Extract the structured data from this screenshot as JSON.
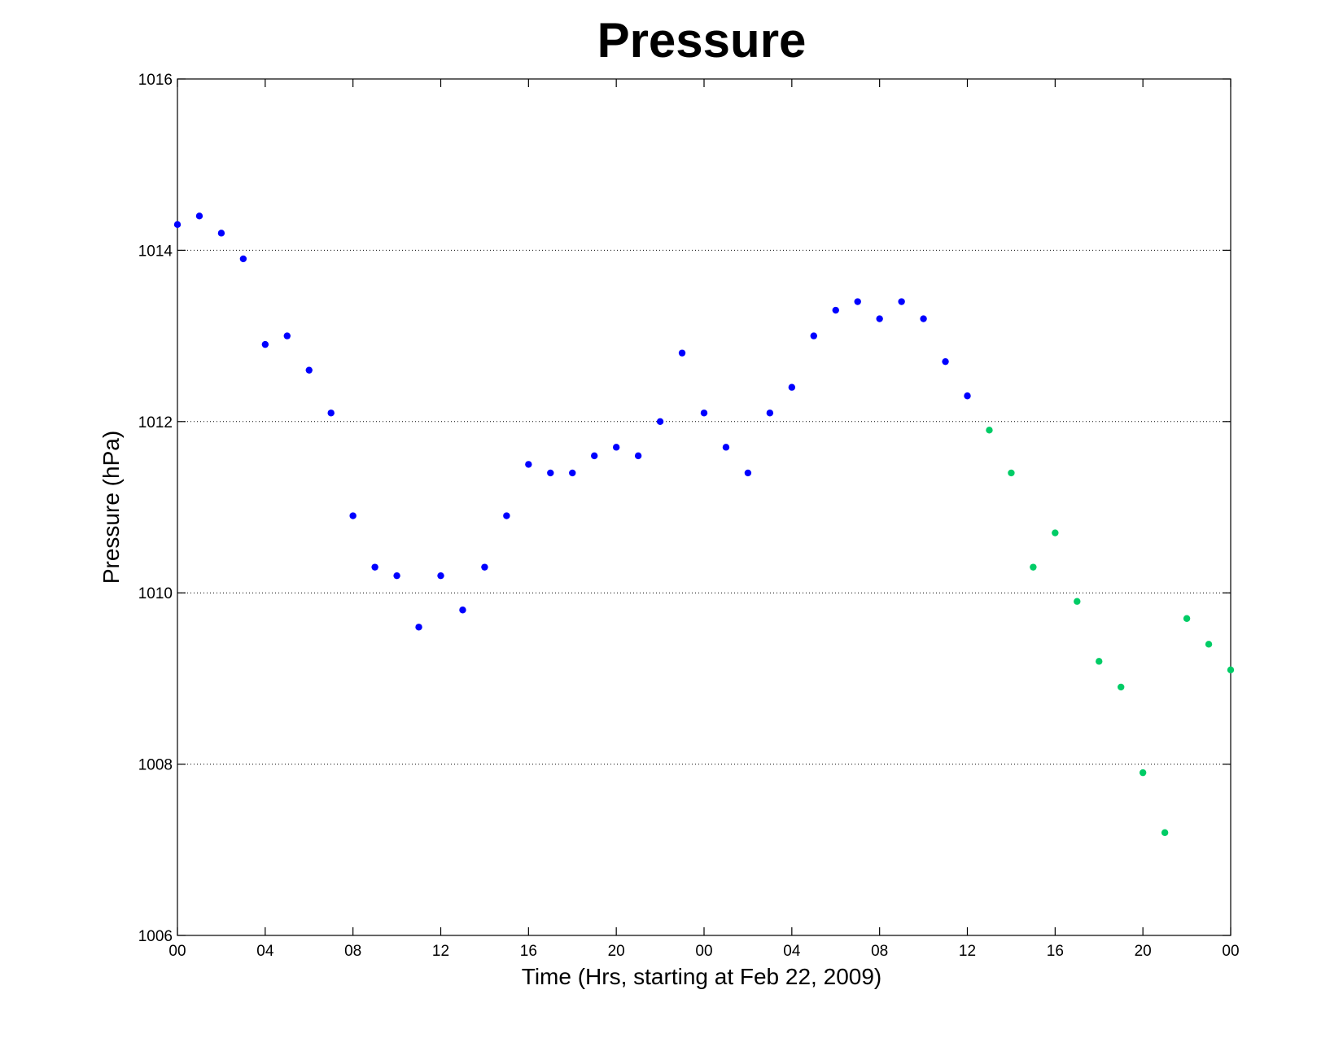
{
  "chart_data": {
    "type": "scatter",
    "title": "Pressure",
    "xlabel": "Time (Hrs, starting at Feb 22, 2009)",
    "ylabel": "Pressure (hPa)",
    "xlim": [
      0,
      48
    ],
    "ylim": [
      1006,
      1016
    ],
    "yticks": [
      1006,
      1008,
      1010,
      1012,
      1014,
      1016
    ],
    "xticks": [
      0,
      4,
      8,
      12,
      16,
      20,
      24,
      28,
      32,
      36,
      40,
      44,
      48
    ],
    "xticklabels": [
      "00",
      "04",
      "08",
      "12",
      "16",
      "20",
      "00",
      "04",
      "08",
      "12",
      "16",
      "20",
      "00"
    ],
    "ygrid": true,
    "series": [
      {
        "color": "#0000ff",
        "x": [
          0,
          1,
          2,
          3,
          4,
          5,
          6,
          7,
          8,
          9,
          10,
          11,
          12,
          13,
          14,
          15,
          16,
          17,
          18,
          19,
          20,
          21,
          22,
          23,
          24,
          25,
          26,
          27,
          28,
          29,
          30,
          31,
          32,
          33,
          34,
          35,
          36
        ],
        "y": [
          1014.3,
          1014.4,
          1014.2,
          1013.9,
          1012.9,
          1013.0,
          1012.6,
          1012.1,
          1010.9,
          1010.3,
          1010.2,
          1009.6,
          1010.2,
          1009.8,
          1010.3,
          1010.9,
          1011.5,
          1011.4,
          1011.4,
          1011.6,
          1011.7,
          1011.6,
          1012.0,
          1012.8,
          1012.1,
          1011.7,
          1011.4,
          1012.1,
          1012.4,
          1013.0,
          1013.3,
          1013.4,
          1013.2,
          1013.4,
          1013.2,
          1012.7,
          1012.3
        ]
      },
      {
        "color": "#00cc66",
        "x": [
          37,
          38,
          39,
          40,
          41,
          42,
          43,
          44,
          45,
          46,
          47,
          48
        ],
        "y": [
          1011.9,
          1011.4,
          1010.3,
          1010.7,
          1009.9,
          1009.2,
          1008.9,
          1007.9,
          1007.2,
          1009.7,
          1009.4,
          1009.1
        ]
      }
    ]
  }
}
